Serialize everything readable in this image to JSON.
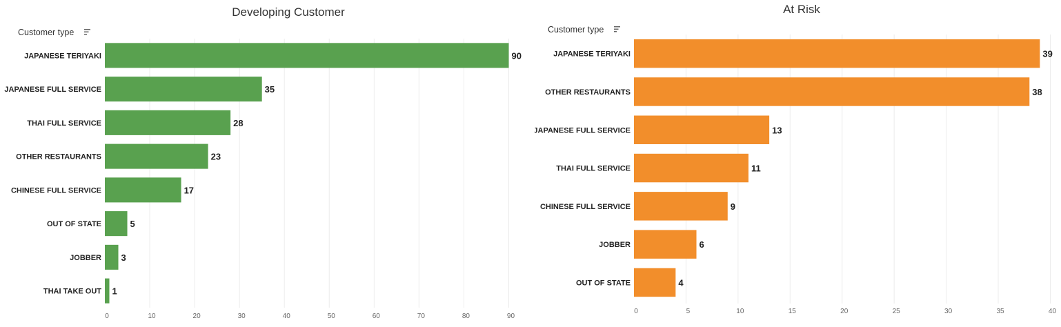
{
  "chart_data": [
    {
      "type": "bar",
      "orientation": "horizontal",
      "title": "Developing Customer",
      "field_label": "Customer type",
      "field_icon": "sort-icon",
      "color": "#59a14f",
      "categories": [
        "JAPANESE TERIYAKI",
        "JAPANESE FULL SERVICE",
        "THAI FULL SERVICE",
        "OTHER RESTAURANTS",
        "CHINESE FULL SERVICE",
        "OUT OF STATE",
        "JOBBER",
        "THAI TAKE OUT"
      ],
      "values": [
        90,
        35,
        28,
        23,
        17,
        5,
        3,
        1
      ],
      "xlim": [
        0,
        95
      ],
      "xticks": [
        0,
        10,
        20,
        30,
        40,
        50,
        60,
        70,
        80,
        90
      ],
      "grid": true
    },
    {
      "type": "bar",
      "orientation": "horizontal",
      "title": "At Risk",
      "field_label": "Customer type",
      "field_icon": "sort-icon",
      "color": "#f28e2b",
      "categories": [
        "JAPANESE TERIYAKI",
        "OTHER RESTAURANTS",
        "JAPANESE FULL SERVICE",
        "THAI FULL SERVICE",
        "CHINESE FULL SERVICE",
        "JOBBER",
        "OUT OF STATE"
      ],
      "values": [
        39,
        38,
        13,
        11,
        9,
        6,
        4
      ],
      "xlim": [
        0,
        40.5
      ],
      "xticks": [
        0,
        5,
        10,
        15,
        20,
        25,
        30,
        35,
        40
      ],
      "grid": true
    }
  ]
}
